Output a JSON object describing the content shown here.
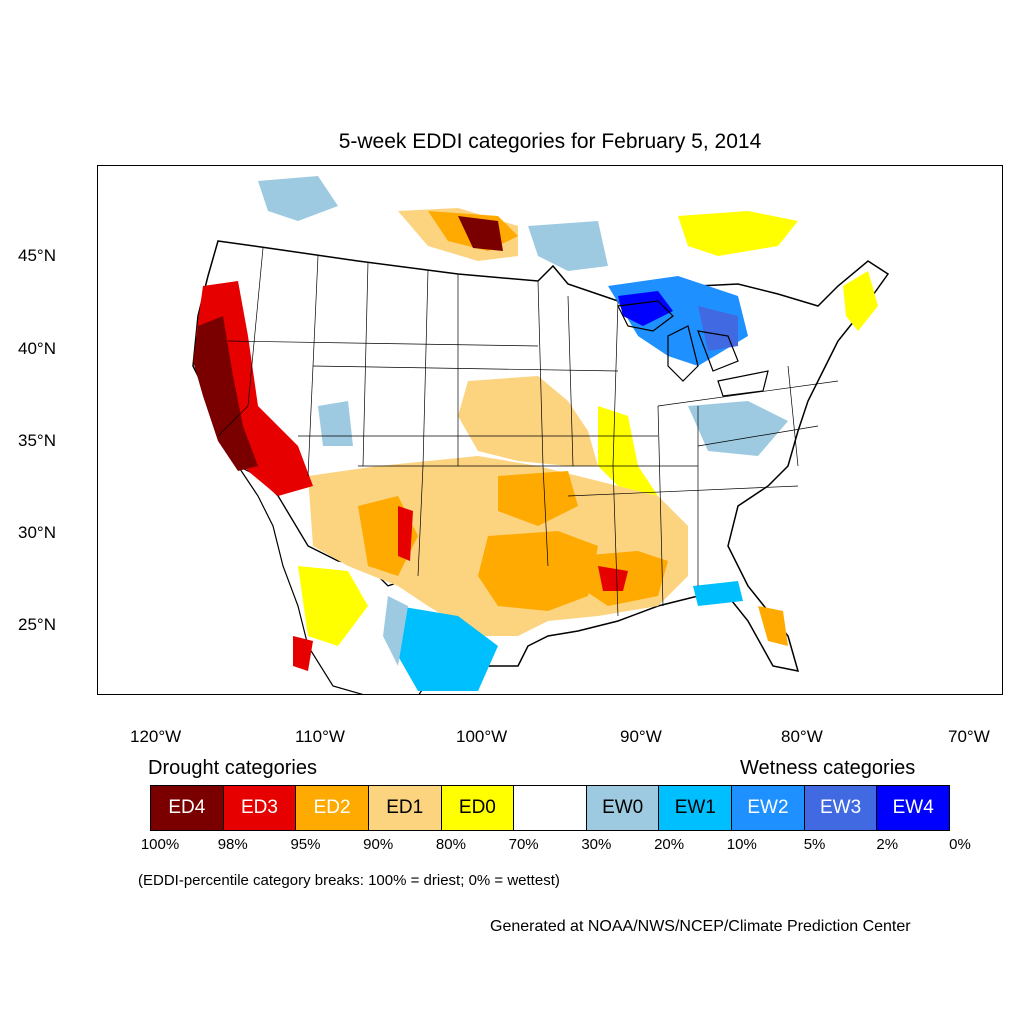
{
  "title": "5-week EDDI categories for February 5, 2014",
  "lat_labels": [
    "45°N",
    "40°N",
    "35°N",
    "30°N",
    "25°N"
  ],
  "lon_labels": [
    "120°W",
    "110°W",
    "100°W",
    "90°W",
    "80°W",
    "70°W"
  ],
  "legend": {
    "drought_heading": "Drought categories",
    "wetness_heading": "Wetness categories",
    "categories": [
      {
        "label": "ED4",
        "color": "#7a0000",
        "text_color": "#ffffff"
      },
      {
        "label": "ED3",
        "color": "#e60000",
        "text_color": "#ffffff"
      },
      {
        "label": "ED2",
        "color": "#ffaa00",
        "text_color": "#ffffff"
      },
      {
        "label": "ED1",
        "color": "#fcd37f",
        "text_color": "#000000"
      },
      {
        "label": "ED0",
        "color": "#ffff00",
        "text_color": "#000000"
      },
      {
        "label": "",
        "color": "#ffffff",
        "text_color": "#000000"
      },
      {
        "label": "EW0",
        "color": "#9ecae1",
        "text_color": "#000000"
      },
      {
        "label": "EW1",
        "color": "#00bfff",
        "text_color": "#000000"
      },
      {
        "label": "EW2",
        "color": "#1e90ff",
        "text_color": "#ffffff"
      },
      {
        "label": "EW3",
        "color": "#4169e1",
        "text_color": "#ffffff"
      },
      {
        "label": "EW4",
        "color": "#0000ff",
        "text_color": "#ffffff"
      }
    ],
    "breaks": [
      "100%",
      "98%",
      "95%",
      "90%",
      "80%",
      "70%",
      "30%",
      "20%",
      "10%",
      "5%",
      "2%",
      "0%"
    ]
  },
  "note": "(EDDI-percentile category breaks: 100% = driest; 0% = wettest)",
  "credit": "Generated at NOAA/NWS/NCEP/Climate Prediction Center"
}
